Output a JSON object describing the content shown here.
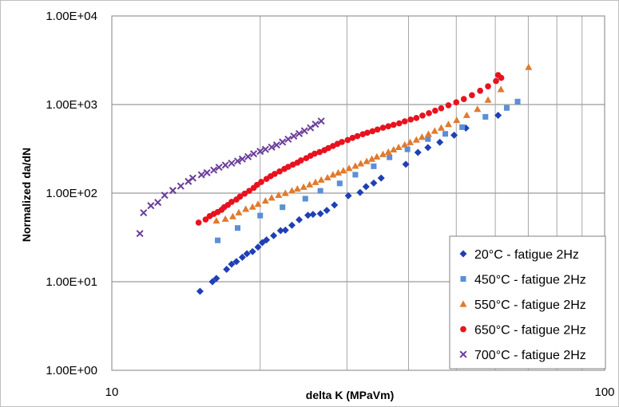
{
  "chart_data": {
    "type": "scatter",
    "title": "",
    "xlabel": "delta K (MPaVm)",
    "ylabel": "Normalized da/dN",
    "x_scale": "log",
    "y_scale": "log",
    "xlim": [
      10,
      100
    ],
    "ylim": [
      1,
      10000
    ],
    "x_tick_labels": [
      {
        "value": 10,
        "label": "10"
      },
      {
        "value": 100,
        "label": "100"
      }
    ],
    "y_tick_labels": [
      {
        "value": 1,
        "label": "1.00E+00"
      },
      {
        "value": 10,
        "label": "1.00E+01"
      },
      {
        "value": 100,
        "label": "1.00E+02"
      },
      {
        "value": 1000,
        "label": "1.00E+03"
      },
      {
        "value": 10000,
        "label": "1.00E+04"
      }
    ],
    "grid": true,
    "legend_position": "bottom-right",
    "series": [
      {
        "name": "20°C - fatigue 2Hz",
        "color": "#1f3fb5",
        "marker": "diamond",
        "points": [
          [
            15.1,
            7.8
          ],
          [
            16.0,
            10.0
          ],
          [
            16.3,
            10.9
          ],
          [
            17.1,
            13.8
          ],
          [
            17.5,
            15.8
          ],
          [
            17.9,
            16.9
          ],
          [
            18.4,
            18.9
          ],
          [
            18.8,
            20.7
          ],
          [
            19.3,
            21.9
          ],
          [
            19.8,
            24.6
          ],
          [
            20.2,
            27.6
          ],
          [
            20.6,
            29.6
          ],
          [
            21.3,
            33.1
          ],
          [
            22.0,
            37.7
          ],
          [
            22.5,
            38.2
          ],
          [
            23.2,
            43.4
          ],
          [
            24.0,
            50.0
          ],
          [
            25.0,
            56.3
          ],
          [
            25.6,
            57.6
          ],
          [
            26.5,
            58.6
          ],
          [
            27.3,
            63.8
          ],
          [
            28.3,
            73.4
          ],
          [
            30.2,
            93.4
          ],
          [
            31.9,
            101.9
          ],
          [
            32.8,
            118.5
          ],
          [
            34.0,
            130.1
          ],
          [
            35.2,
            148.1
          ],
          [
            39.5,
            211.7
          ],
          [
            41.8,
            288.0
          ],
          [
            43.8,
            327.2
          ],
          [
            46.3,
            375.6
          ],
          [
            49.5,
            450.8
          ],
          [
            52.3,
            542.6
          ],
          [
            60.8,
            754.9
          ]
        ]
      },
      {
        "name": "450°C - fatigue 2Hz",
        "color": "#5b8fd6",
        "marker": "square",
        "points": [
          [
            16.4,
            29.3
          ],
          [
            18.0,
            40.4
          ],
          [
            20.0,
            55.8
          ],
          [
            22.2,
            69.3
          ],
          [
            24.7,
            86.5
          ],
          [
            26.5,
            106.1
          ],
          [
            29.0,
            128.8
          ],
          [
            31.2,
            161.4
          ],
          [
            34.0,
            200.9
          ],
          [
            36.6,
            253.7
          ],
          [
            39.8,
            312.5
          ],
          [
            43.8,
            407.8
          ],
          [
            47.5,
            466.5
          ],
          [
            51.4,
            555.3
          ],
          [
            57.3,
            726.6
          ],
          [
            63.3,
            915.5
          ],
          [
            66.6,
            1080.0
          ]
        ]
      },
      {
        "name": "550°C - fatigue 2Hz",
        "color": "#e07a2e",
        "marker": "triangle",
        "points": [
          [
            16.3,
            48.8
          ],
          [
            17.0,
            51.2
          ],
          [
            17.6,
            54.6
          ],
          [
            18.1,
            60.5
          ],
          [
            18.7,
            66.2
          ],
          [
            19.3,
            70.0
          ],
          [
            19.8,
            75.3
          ],
          [
            20.5,
            82.0
          ],
          [
            21.1,
            88.8
          ],
          [
            21.8,
            95.1
          ],
          [
            22.5,
            100.0
          ],
          [
            23.2,
            106.8
          ],
          [
            23.8,
            112.0
          ],
          [
            24.5,
            117.3
          ],
          [
            25.2,
            125.0
          ],
          [
            25.9,
            133.0
          ],
          [
            26.6,
            141.3
          ],
          [
            27.4,
            150.0
          ],
          [
            28.1,
            161.4
          ],
          [
            28.8,
            170.0
          ],
          [
            29.5,
            179.6
          ],
          [
            30.3,
            191.0
          ],
          [
            31.2,
            202.9
          ],
          [
            32.0,
            215.8
          ],
          [
            32.9,
            229.3
          ],
          [
            33.7,
            243.4
          ],
          [
            34.5,
            258.1
          ],
          [
            35.5,
            275.0
          ],
          [
            36.4,
            292.0
          ],
          [
            37.3,
            310.0
          ],
          [
            38.2,
            330.0
          ],
          [
            39.3,
            352.0
          ],
          [
            40.3,
            375.0
          ],
          [
            41.5,
            400.0
          ],
          [
            42.6,
            430.0
          ],
          [
            43.9,
            465.0
          ],
          [
            45.2,
            503.8
          ],
          [
            46.6,
            546.1
          ],
          [
            48.2,
            599.8
          ],
          [
            50.1,
            666.2
          ],
          [
            52.5,
            760.0
          ],
          [
            55.2,
            890.0
          ],
          [
            58.0,
            1128.5
          ],
          [
            61.6,
            1487.7
          ],
          [
            70.1,
            2641.0
          ]
        ]
      },
      {
        "name": "650°C - fatigue 2Hz",
        "color": "#e8121f",
        "marker": "circle",
        "points": [
          [
            15.0,
            46.5
          ],
          [
            15.5,
            50.4
          ],
          [
            15.8,
            55.0
          ],
          [
            16.1,
            58.2
          ],
          [
            16.4,
            61.2
          ],
          [
            16.7,
            64.8
          ],
          [
            16.9,
            69.3
          ],
          [
            17.2,
            73.6
          ],
          [
            17.5,
            79.6
          ],
          [
            17.9,
            84.7
          ],
          [
            18.2,
            91.3
          ],
          [
            18.6,
            98.6
          ],
          [
            19.0,
            106.0
          ],
          [
            19.4,
            114.5
          ],
          [
            19.7,
            123.8
          ],
          [
            20.1,
            133.7
          ],
          [
            20.6,
            144.8
          ],
          [
            21.0,
            155.2
          ],
          [
            21.4,
            164.6
          ],
          [
            21.9,
            175.7
          ],
          [
            22.4,
            187.8
          ],
          [
            22.8,
            198.0
          ],
          [
            23.3,
            209.6
          ],
          [
            23.8,
            221.0
          ],
          [
            24.2,
            234.1
          ],
          [
            24.8,
            248.3
          ],
          [
            25.3,
            264.2
          ],
          [
            25.8,
            278.7
          ],
          [
            26.4,
            290.4
          ],
          [
            27.0,
            305.8
          ],
          [
            27.5,
            322.7
          ],
          [
            28.1,
            340.8
          ],
          [
            28.7,
            360.0
          ],
          [
            29.3,
            378.0
          ],
          [
            30.1,
            398.1
          ],
          [
            30.8,
            420.6
          ],
          [
            31.5,
            440.3
          ],
          [
            32.3,
            462.5
          ],
          [
            33.0,
            480.8
          ],
          [
            33.8,
            500.0
          ],
          [
            34.6,
            522.0
          ],
          [
            35.5,
            547.3
          ],
          [
            36.4,
            568.1
          ],
          [
            37.3,
            589.6
          ],
          [
            38.3,
            613.4
          ],
          [
            39.3,
            645.6
          ],
          [
            40.4,
            676.5
          ],
          [
            41.5,
            705.5
          ],
          [
            42.7,
            750.5
          ],
          [
            44.0,
            798.7
          ],
          [
            45.3,
            853.3
          ],
          [
            46.6,
            906.6
          ],
          [
            48.2,
            980.0
          ],
          [
            50.0,
            1060.0
          ],
          [
            51.8,
            1153.0
          ],
          [
            53.8,
            1273.6
          ],
          [
            55.9,
            1430.0
          ],
          [
            58.0,
            1606.7
          ],
          [
            60.2,
            1840.8
          ],
          [
            60.8,
            2150.0
          ],
          [
            61.7,
            2000.0
          ]
        ]
      },
      {
        "name": "700°C - fatigue 2Hz",
        "color": "#6a3d9a",
        "marker": "x",
        "points": [
          [
            11.4,
            35.0
          ],
          [
            11.6,
            60.0
          ],
          [
            12.0,
            72.2
          ],
          [
            12.4,
            78.5
          ],
          [
            12.8,
            94.6
          ],
          [
            13.3,
            107.1
          ],
          [
            13.8,
            120.2
          ],
          [
            14.3,
            135.6
          ],
          [
            14.6,
            147.9
          ],
          [
            15.2,
            161.0
          ],
          [
            15.6,
            170.0
          ],
          [
            16.1,
            182.0
          ],
          [
            16.5,
            195.7
          ],
          [
            17.0,
            207.0
          ],
          [
            17.5,
            217.7
          ],
          [
            18.0,
            230.0
          ],
          [
            18.4,
            242.6
          ],
          [
            18.9,
            258.1
          ],
          [
            19.4,
            278.0
          ],
          [
            20.0,
            296.0
          ],
          [
            20.5,
            312.0
          ],
          [
            21.1,
            330.4
          ],
          [
            21.6,
            350.0
          ],
          [
            22.2,
            377.6
          ],
          [
            22.8,
            406.6
          ],
          [
            23.4,
            440.2
          ],
          [
            24.0,
            470.0
          ],
          [
            24.6,
            505.0
          ],
          [
            25.3,
            546.2
          ],
          [
            25.9,
            600.0
          ],
          [
            26.6,
            650.0
          ]
        ]
      }
    ]
  }
}
